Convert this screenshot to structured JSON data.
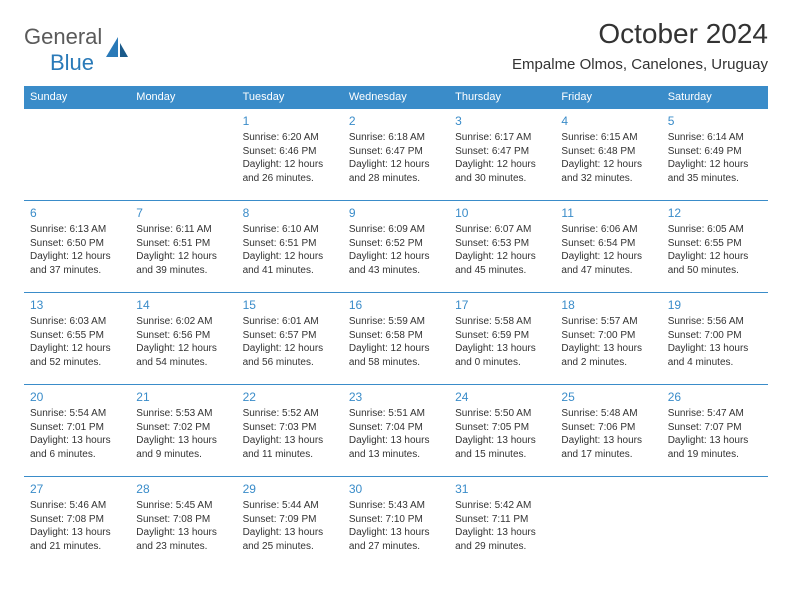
{
  "brand": {
    "part1": "General",
    "part2": "Blue"
  },
  "title": "October 2024",
  "location": "Empalme Olmos, Canelones, Uruguay",
  "colors": {
    "header_bg": "#3a8cc9",
    "header_text": "#ffffff",
    "day_num": "#3a8cc9",
    "body_text": "#333333",
    "border": "#3a8cc9",
    "brand_blue": "#2a7ab8",
    "brand_gray": "#5a5a5a",
    "background": "#ffffff"
  },
  "typography": {
    "title_fontsize": 28,
    "location_fontsize": 15,
    "header_fontsize": 11,
    "daynum_fontsize": 12,
    "detail_fontsize": 10
  },
  "weekdays": [
    "Sunday",
    "Monday",
    "Tuesday",
    "Wednesday",
    "Thursday",
    "Friday",
    "Saturday"
  ],
  "weeks": [
    [
      null,
      null,
      {
        "n": "1",
        "sr": "Sunrise: 6:20 AM",
        "ss": "Sunset: 6:46 PM",
        "dl": "Daylight: 12 hours and 26 minutes."
      },
      {
        "n": "2",
        "sr": "Sunrise: 6:18 AM",
        "ss": "Sunset: 6:47 PM",
        "dl": "Daylight: 12 hours and 28 minutes."
      },
      {
        "n": "3",
        "sr": "Sunrise: 6:17 AM",
        "ss": "Sunset: 6:47 PM",
        "dl": "Daylight: 12 hours and 30 minutes."
      },
      {
        "n": "4",
        "sr": "Sunrise: 6:15 AM",
        "ss": "Sunset: 6:48 PM",
        "dl": "Daylight: 12 hours and 32 minutes."
      },
      {
        "n": "5",
        "sr": "Sunrise: 6:14 AM",
        "ss": "Sunset: 6:49 PM",
        "dl": "Daylight: 12 hours and 35 minutes."
      }
    ],
    [
      {
        "n": "6",
        "sr": "Sunrise: 6:13 AM",
        "ss": "Sunset: 6:50 PM",
        "dl": "Daylight: 12 hours and 37 minutes."
      },
      {
        "n": "7",
        "sr": "Sunrise: 6:11 AM",
        "ss": "Sunset: 6:51 PM",
        "dl": "Daylight: 12 hours and 39 minutes."
      },
      {
        "n": "8",
        "sr": "Sunrise: 6:10 AM",
        "ss": "Sunset: 6:51 PM",
        "dl": "Daylight: 12 hours and 41 minutes."
      },
      {
        "n": "9",
        "sr": "Sunrise: 6:09 AM",
        "ss": "Sunset: 6:52 PM",
        "dl": "Daylight: 12 hours and 43 minutes."
      },
      {
        "n": "10",
        "sr": "Sunrise: 6:07 AM",
        "ss": "Sunset: 6:53 PM",
        "dl": "Daylight: 12 hours and 45 minutes."
      },
      {
        "n": "11",
        "sr": "Sunrise: 6:06 AM",
        "ss": "Sunset: 6:54 PM",
        "dl": "Daylight: 12 hours and 47 minutes."
      },
      {
        "n": "12",
        "sr": "Sunrise: 6:05 AM",
        "ss": "Sunset: 6:55 PM",
        "dl": "Daylight: 12 hours and 50 minutes."
      }
    ],
    [
      {
        "n": "13",
        "sr": "Sunrise: 6:03 AM",
        "ss": "Sunset: 6:55 PM",
        "dl": "Daylight: 12 hours and 52 minutes."
      },
      {
        "n": "14",
        "sr": "Sunrise: 6:02 AM",
        "ss": "Sunset: 6:56 PM",
        "dl": "Daylight: 12 hours and 54 minutes."
      },
      {
        "n": "15",
        "sr": "Sunrise: 6:01 AM",
        "ss": "Sunset: 6:57 PM",
        "dl": "Daylight: 12 hours and 56 minutes."
      },
      {
        "n": "16",
        "sr": "Sunrise: 5:59 AM",
        "ss": "Sunset: 6:58 PM",
        "dl": "Daylight: 12 hours and 58 minutes."
      },
      {
        "n": "17",
        "sr": "Sunrise: 5:58 AM",
        "ss": "Sunset: 6:59 PM",
        "dl": "Daylight: 13 hours and 0 minutes."
      },
      {
        "n": "18",
        "sr": "Sunrise: 5:57 AM",
        "ss": "Sunset: 7:00 PM",
        "dl": "Daylight: 13 hours and 2 minutes."
      },
      {
        "n": "19",
        "sr": "Sunrise: 5:56 AM",
        "ss": "Sunset: 7:00 PM",
        "dl": "Daylight: 13 hours and 4 minutes."
      }
    ],
    [
      {
        "n": "20",
        "sr": "Sunrise: 5:54 AM",
        "ss": "Sunset: 7:01 PM",
        "dl": "Daylight: 13 hours and 6 minutes."
      },
      {
        "n": "21",
        "sr": "Sunrise: 5:53 AM",
        "ss": "Sunset: 7:02 PM",
        "dl": "Daylight: 13 hours and 9 minutes."
      },
      {
        "n": "22",
        "sr": "Sunrise: 5:52 AM",
        "ss": "Sunset: 7:03 PM",
        "dl": "Daylight: 13 hours and 11 minutes."
      },
      {
        "n": "23",
        "sr": "Sunrise: 5:51 AM",
        "ss": "Sunset: 7:04 PM",
        "dl": "Daylight: 13 hours and 13 minutes."
      },
      {
        "n": "24",
        "sr": "Sunrise: 5:50 AM",
        "ss": "Sunset: 7:05 PM",
        "dl": "Daylight: 13 hours and 15 minutes."
      },
      {
        "n": "25",
        "sr": "Sunrise: 5:48 AM",
        "ss": "Sunset: 7:06 PM",
        "dl": "Daylight: 13 hours and 17 minutes."
      },
      {
        "n": "26",
        "sr": "Sunrise: 5:47 AM",
        "ss": "Sunset: 7:07 PM",
        "dl": "Daylight: 13 hours and 19 minutes."
      }
    ],
    [
      {
        "n": "27",
        "sr": "Sunrise: 5:46 AM",
        "ss": "Sunset: 7:08 PM",
        "dl": "Daylight: 13 hours and 21 minutes."
      },
      {
        "n": "28",
        "sr": "Sunrise: 5:45 AM",
        "ss": "Sunset: 7:08 PM",
        "dl": "Daylight: 13 hours and 23 minutes."
      },
      {
        "n": "29",
        "sr": "Sunrise: 5:44 AM",
        "ss": "Sunset: 7:09 PM",
        "dl": "Daylight: 13 hours and 25 minutes."
      },
      {
        "n": "30",
        "sr": "Sunrise: 5:43 AM",
        "ss": "Sunset: 7:10 PM",
        "dl": "Daylight: 13 hours and 27 minutes."
      },
      {
        "n": "31",
        "sr": "Sunrise: 5:42 AM",
        "ss": "Sunset: 7:11 PM",
        "dl": "Daylight: 13 hours and 29 minutes."
      },
      null,
      null
    ]
  ]
}
